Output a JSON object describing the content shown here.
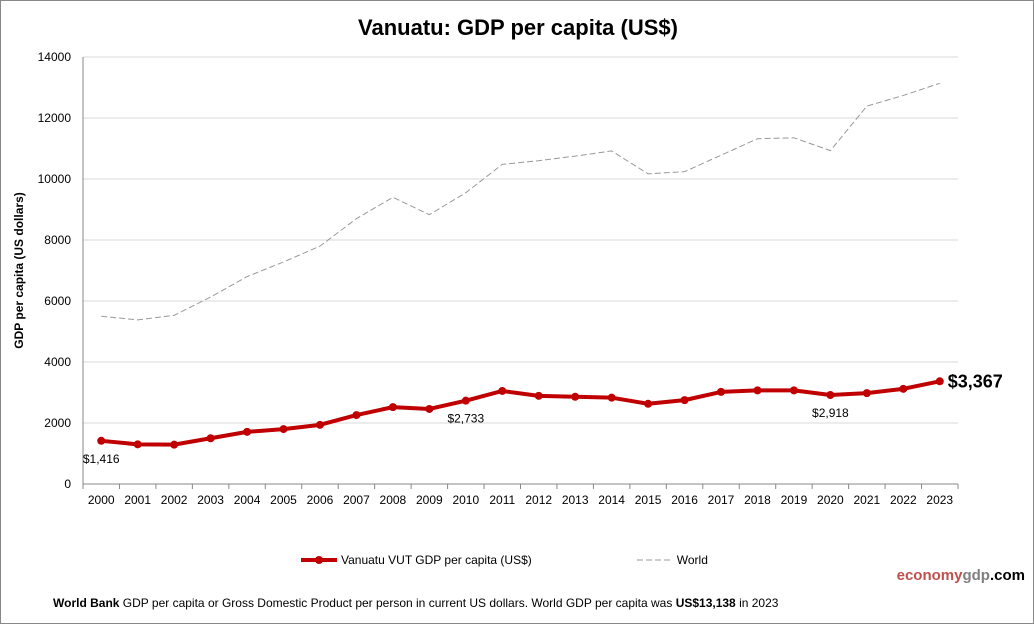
{
  "chart_data": {
    "type": "line",
    "title": "Vanuatu: GDP per capita (US$)",
    "xlabel": "",
    "ylabel": "GDP per capita (US dollars)",
    "ylim": [
      0,
      14000
    ],
    "yticks": [
      0,
      2000,
      4000,
      6000,
      8000,
      10000,
      12000,
      14000
    ],
    "grid": true,
    "legend_position": "bottom",
    "x": [
      "2000",
      "2001",
      "2002",
      "2003",
      "2004",
      "2005",
      "2006",
      "2007",
      "2008",
      "2009",
      "2010",
      "2011",
      "2012",
      "2013",
      "2014",
      "2015",
      "2016",
      "2017",
      "2018",
      "2019",
      "2020",
      "2021",
      "2022",
      "2023"
    ],
    "series": [
      {
        "name": "Vanuatu VUT GDP per capita (US$)",
        "color": "#c00000",
        "style": "solid-markers",
        "values": [
          1416,
          1300,
          1290,
          1500,
          1710,
          1800,
          1940,
          2260,
          2520,
          2460,
          2733,
          3050,
          2890,
          2860,
          2830,
          2630,
          2750,
          3020,
          3070,
          3070,
          2918,
          2980,
          3120,
          3367
        ]
      },
      {
        "name": "World",
        "color": "#999999",
        "style": "dashed",
        "values": [
          5500,
          5380,
          5530,
          6130,
          6800,
          7280,
          7800,
          8700,
          9400,
          8830,
          9550,
          10480,
          10600,
          10750,
          10920,
          10170,
          10240,
          10780,
          11320,
          11350,
          10930,
          12390,
          12740,
          13138
        ]
      }
    ],
    "annotations": [
      {
        "year": "2000",
        "text": "$1,416"
      },
      {
        "year": "2010",
        "text": "$2,733"
      },
      {
        "year": "2020",
        "text": "$2,918"
      },
      {
        "year": "2023",
        "text": "$3,367"
      }
    ]
  },
  "logo": {
    "part1": "economy",
    "part2": "gdp",
    "part3": ".com",
    "color1": "#c0504d",
    "color2": "#808080"
  },
  "footer": {
    "source": "World Bank",
    "text": " GDP per capita or Gross Domestic Product per person  in current US dollars.   World GDP per capita was ",
    "value": "US$13,138",
    "tail": "  in 2023"
  }
}
